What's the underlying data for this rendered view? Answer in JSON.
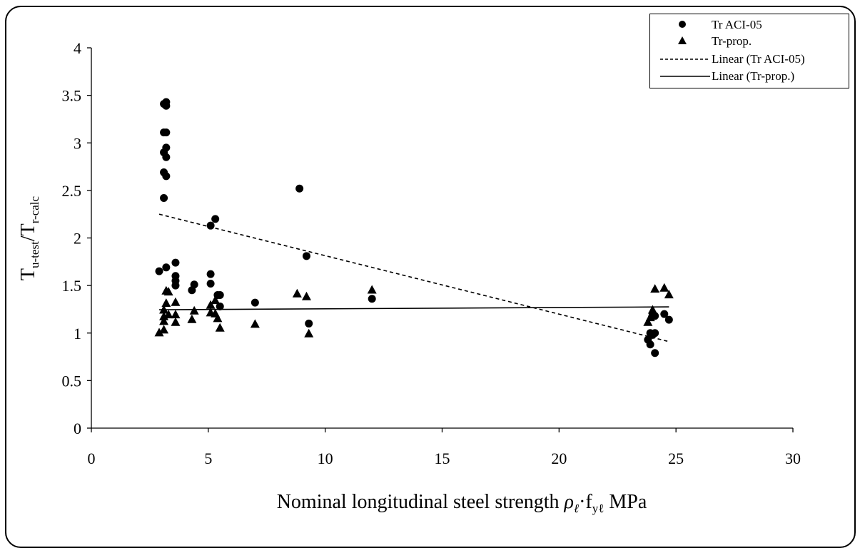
{
  "chart_data": {
    "type": "scatter",
    "xlim": [
      0,
      30
    ],
    "ylim": [
      0,
      4
    ],
    "x_ticks": [
      "0",
      "5",
      "10",
      "15",
      "20",
      "25",
      "30"
    ],
    "y_ticks": [
      "0",
      "0.5",
      "1",
      "1.5",
      "2",
      "2.5",
      "3",
      "3.5",
      "4"
    ],
    "xlabel": {
      "main": "Nominal longitudinal steel strength ",
      "rho": "ρ",
      "rho_sub": "ℓ",
      "dot": "·f",
      "f_sub": "yℓ",
      "unit": "  MPa"
    },
    "ylabel": {
      "num": "T",
      "num_sub": "u-test",
      "slash": "/T",
      "den_sub": "r-calc"
    },
    "legend_position": "top-right",
    "legend": [
      {
        "label": "Tr ACI-05",
        "symbol": "circle"
      },
      {
        "label": "Tr-prop.",
        "symbol": "triangle"
      },
      {
        "label": "Linear (Tr ACI-05)",
        "symbol": "dashed-line"
      },
      {
        "label": "Linear (Tr-prop.)",
        "symbol": "solid-line"
      }
    ],
    "series": [
      {
        "name": "Tr ACI-05",
        "marker": "circle",
        "color": "#000000",
        "points": [
          [
            2.9,
            1.65
          ],
          [
            3.1,
            3.41
          ],
          [
            3.2,
            3.43
          ],
          [
            3.2,
            3.39
          ],
          [
            3.1,
            3.11
          ],
          [
            3.2,
            3.11
          ],
          [
            3.2,
            2.95
          ],
          [
            3.1,
            2.9
          ],
          [
            3.2,
            2.85
          ],
          [
            3.1,
            2.69
          ],
          [
            3.2,
            2.65
          ],
          [
            3.1,
            2.42
          ],
          [
            3.2,
            1.69
          ],
          [
            3.6,
            1.74
          ],
          [
            3.6,
            1.6
          ],
          [
            3.6,
            1.55
          ],
          [
            3.6,
            1.5
          ],
          [
            4.4,
            1.51
          ],
          [
            4.3,
            1.45
          ],
          [
            5.1,
            2.13
          ],
          [
            5.3,
            2.2
          ],
          [
            5.1,
            1.62
          ],
          [
            5.1,
            1.52
          ],
          [
            5.4,
            1.4
          ],
          [
            5.5,
            1.4
          ],
          [
            5.5,
            1.28
          ],
          [
            7.0,
            1.32
          ],
          [
            8.9,
            2.52
          ],
          [
            9.2,
            1.81
          ],
          [
            9.3,
            1.1
          ],
          [
            12.0,
            1.36
          ],
          [
            23.8,
            0.93
          ],
          [
            23.9,
            0.88
          ],
          [
            23.9,
            1.0
          ],
          [
            24.0,
            0.98
          ],
          [
            24.0,
            1.2
          ],
          [
            24.1,
            1.18
          ],
          [
            24.1,
            1.0
          ],
          [
            24.1,
            0.79
          ],
          [
            24.5,
            1.2
          ],
          [
            24.7,
            1.14
          ]
        ]
      },
      {
        "name": "Tr-prop.",
        "marker": "triangle",
        "color": "#000000",
        "points": [
          [
            2.9,
            1.01
          ],
          [
            3.1,
            1.04
          ],
          [
            3.1,
            1.13
          ],
          [
            3.1,
            1.18
          ],
          [
            3.1,
            1.25
          ],
          [
            3.2,
            1.32
          ],
          [
            3.2,
            1.45
          ],
          [
            3.3,
            1.44
          ],
          [
            3.3,
            1.2
          ],
          [
            3.6,
            1.33
          ],
          [
            3.6,
            1.2
          ],
          [
            3.6,
            1.12
          ],
          [
            4.4,
            1.24
          ],
          [
            4.3,
            1.15
          ],
          [
            5.1,
            1.3
          ],
          [
            5.1,
            1.22
          ],
          [
            5.3,
            1.21
          ],
          [
            5.3,
            1.35
          ],
          [
            5.4,
            1.16
          ],
          [
            5.5,
            1.06
          ],
          [
            7.0,
            1.1
          ],
          [
            8.8,
            1.42
          ],
          [
            9.2,
            1.39
          ],
          [
            9.3,
            1.0
          ],
          [
            12.0,
            1.46
          ],
          [
            23.8,
            1.12
          ],
          [
            23.9,
            1.17
          ],
          [
            24.0,
            1.22
          ],
          [
            24.0,
            1.25
          ],
          [
            24.1,
            1.47
          ],
          [
            24.5,
            1.48
          ],
          [
            24.7,
            1.41
          ]
        ]
      }
    ],
    "trendlines": [
      {
        "name": "Linear (Tr ACI-05)",
        "style": "dashed",
        "x": [
          2.9,
          24.7
        ],
        "y": [
          2.25,
          0.91
        ]
      },
      {
        "name": "Linear (Tr-prop.)",
        "style": "solid",
        "x": [
          2.9,
          24.7
        ],
        "y": [
          1.245,
          1.275
        ]
      }
    ]
  }
}
